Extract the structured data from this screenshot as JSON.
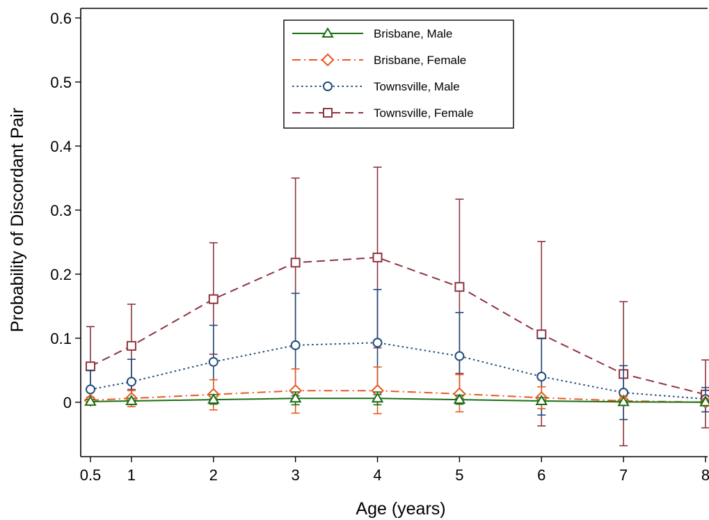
{
  "chart_data": {
    "type": "line",
    "xlabel": "Age (years)",
    "ylabel": "Probability of Discordant Pair",
    "x": [
      0.5,
      1,
      2,
      3,
      4,
      5,
      6,
      7,
      8
    ],
    "x_ticks": [
      0.5,
      1,
      2,
      3,
      4,
      5,
      6,
      7,
      8
    ],
    "x_tick_labels": [
      "0.5",
      "1",
      "2",
      "3",
      "4",
      "5",
      "6",
      "7",
      "8"
    ],
    "xlim": [
      0.5,
      8
    ],
    "y_ticks": [
      0,
      0.1,
      0.2,
      0.3,
      0.4,
      0.5,
      0.6
    ],
    "y_tick_labels": [
      "0",
      "0.1",
      "0.2",
      "0.3",
      "0.4",
      "0.5",
      "0.6"
    ],
    "ylim": [
      -0.085,
      0.615
    ],
    "grid": false,
    "legend_position": "top-center",
    "series": [
      {
        "name": "Brisbane, Male",
        "color": "#1a6e12",
        "marker": "triangle",
        "line_style": "solid",
        "values": [
          0.001,
          0.002,
          0.004,
          0.006,
          0.006,
          0.004,
          0.002,
          0.0005,
          0.0
        ],
        "lower": [
          -0.002,
          -0.003,
          -0.003,
          -0.004,
          -0.004,
          -0.003,
          -0.002,
          -0.001,
          -0.001
        ],
        "upper": [
          0.004,
          0.006,
          0.012,
          0.016,
          0.016,
          0.011,
          0.007,
          0.003,
          0.002
        ]
      },
      {
        "name": "Brisbane, Female",
        "color": "#e8581e",
        "marker": "diamond",
        "line_style": "dash-dot",
        "values": [
          0.003,
          0.006,
          0.012,
          0.018,
          0.018,
          0.013,
          0.007,
          0.002,
          0.0
        ],
        "lower": [
          -0.003,
          -0.007,
          -0.012,
          -0.017,
          -0.018,
          -0.015,
          -0.01,
          -0.004,
          -0.002
        ],
        "upper": [
          0.008,
          0.018,
          0.035,
          0.052,
          0.055,
          0.043,
          0.024,
          0.009,
          0.004
        ]
      },
      {
        "name": "Townsville, Male",
        "color": "#1f4a7a",
        "marker": "circle",
        "line_style": "dotted",
        "values": [
          0.02,
          0.032,
          0.063,
          0.089,
          0.093,
          0.072,
          0.04,
          0.015,
          0.005
        ],
        "lower": [
          -0.003,
          0.0,
          0.005,
          0.01,
          0.012,
          0.006,
          -0.02,
          -0.027,
          -0.015
        ],
        "upper": [
          0.05,
          0.067,
          0.12,
          0.17,
          0.176,
          0.14,
          0.1,
          0.057,
          0.023
        ]
      },
      {
        "name": "Townsville, Female",
        "color": "#8e3440",
        "marker": "square",
        "line_style": "dashed",
        "values": [
          0.056,
          0.088,
          0.161,
          0.218,
          0.226,
          0.18,
          0.106,
          0.044,
          0.012
        ],
        "lower": [
          -0.003,
          0.02,
          0.075,
          0.085,
          0.085,
          0.045,
          -0.037,
          -0.068,
          -0.04
        ],
        "upper": [
          0.118,
          0.153,
          0.249,
          0.35,
          0.367,
          0.317,
          0.251,
          0.157,
          0.066
        ]
      }
    ]
  }
}
